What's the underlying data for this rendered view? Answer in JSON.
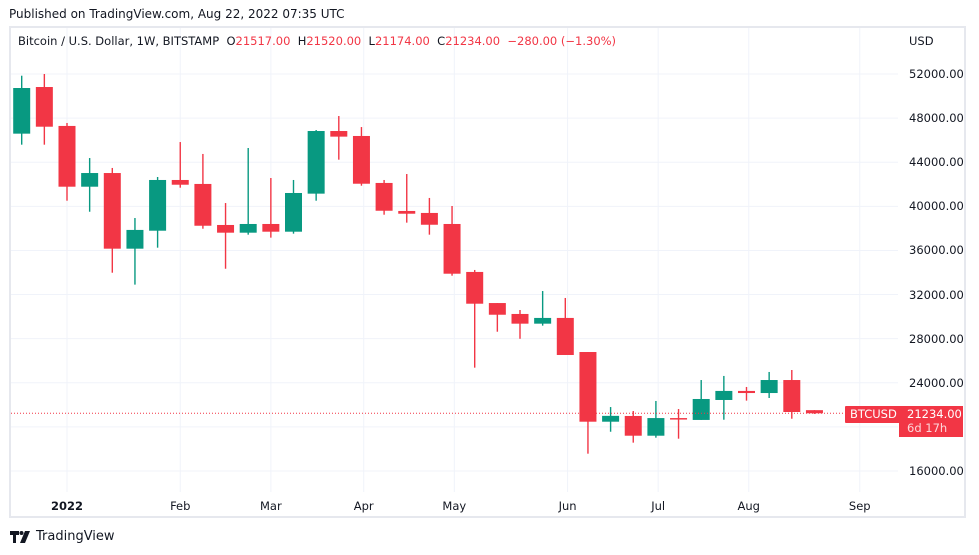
{
  "published": "Published on TradingView.com, Aug 22, 2022 07:35 UTC",
  "legend": {
    "symbol": "Bitcoin / U.S. Dollar, 1W, BITSTAMP",
    "o_label": "O",
    "o": "21517.00",
    "h_label": "H",
    "h": "21520.00",
    "l_label": "L",
    "l": "21174.00",
    "c_label": "C",
    "c": "21234.00",
    "change": "−280.00 (−1.30%)"
  },
  "currency": "USD",
  "symbol_tag": "BTCUSD",
  "last_price": "21234.00",
  "countdown": "6d 17h",
  "footer_brand": "TradingView",
  "colors": {
    "up": "#089981",
    "down": "#f23645",
    "grid": "#f0f3fa"
  },
  "chart_data": {
    "type": "candlestick",
    "title": "Bitcoin / U.S. Dollar, 1W, BITSTAMP",
    "ylim": [
      14000,
      54000
    ],
    "y_ticks": [
      "52000.00",
      "48000.00",
      "44000.00",
      "40000.00",
      "36000.00",
      "32000.00",
      "28000.00",
      "24000.00",
      "20000.00",
      "16000.00"
    ],
    "y_tick_values": [
      52000,
      48000,
      44000,
      40000,
      36000,
      32000,
      28000,
      24000,
      20000,
      16000
    ],
    "x_ticks": [
      {
        "label": "2022",
        "week": 2,
        "bold": true
      },
      {
        "label": "Feb",
        "week": 7
      },
      {
        "label": "Mar",
        "week": 11
      },
      {
        "label": "Apr",
        "week": 15.1
      },
      {
        "label": "May",
        "week": 19.1
      },
      {
        "label": "Jun",
        "week": 24.1
      },
      {
        "label": "Jul",
        "week": 28.1
      },
      {
        "label": "Aug",
        "week": 32.1
      },
      {
        "label": "Sep",
        "week": 37
      }
    ],
    "candles": [
      [
        46590,
        51846,
        45590,
        50730
      ],
      [
        50820,
        52000,
        45590,
        47220
      ],
      [
        47290,
        47560,
        40510,
        41780
      ],
      [
        41780,
        44380,
        39510,
        43020
      ],
      [
        43020,
        43480,
        33980,
        36160
      ],
      [
        36160,
        38940,
        32900,
        37860
      ],
      [
        37790,
        42660,
        36250,
        42390
      ],
      [
        42390,
        45830,
        41690,
        41960
      ],
      [
        42030,
        44750,
        37970,
        38240
      ],
      [
        38310,
        40300,
        34340,
        37610
      ],
      [
        37610,
        45290,
        37430,
        38400
      ],
      [
        38400,
        42570,
        37160,
        37700
      ],
      [
        37700,
        42390,
        37520,
        41210
      ],
      [
        41150,
        46920,
        40510,
        46830
      ],
      [
        46830,
        48190,
        44230,
        46320
      ],
      [
        46380,
        47190,
        41870,
        42050
      ],
      [
        42120,
        42390,
        39240,
        39600
      ],
      [
        39580,
        42930,
        38520,
        39330
      ],
      [
        39400,
        40760,
        37430,
        38330
      ],
      [
        38400,
        40030,
        33710,
        33890
      ],
      [
        34050,
        34230,
        25370,
        31170
      ],
      [
        31230,
        31230,
        28630,
        30170
      ],
      [
        30240,
        30600,
        27990,
        29360
      ],
      [
        29360,
        32320,
        29180,
        29880
      ],
      [
        29880,
        31690,
        26520,
        26520
      ],
      [
        26790,
        26790,
        17570,
        20470
      ],
      [
        20470,
        21800,
        19560,
        21000
      ],
      [
        20990,
        21440,
        18570,
        19200
      ],
      [
        19200,
        22350,
        19020,
        20800
      ],
      [
        20800,
        21620,
        18930,
        20740
      ],
      [
        20630,
        24250,
        20630,
        22530
      ],
      [
        22440,
        24620,
        20650,
        23260
      ],
      [
        23260,
        23620,
        22380,
        23070
      ],
      [
        23070,
        24980,
        22620,
        24250
      ],
      [
        24250,
        25160,
        20740,
        21350
      ],
      [
        21517,
        21520,
        21174,
        21234
      ]
    ],
    "candle_fields": [
      "open",
      "high",
      "low",
      "close"
    ],
    "last_price_value": 21234
  }
}
